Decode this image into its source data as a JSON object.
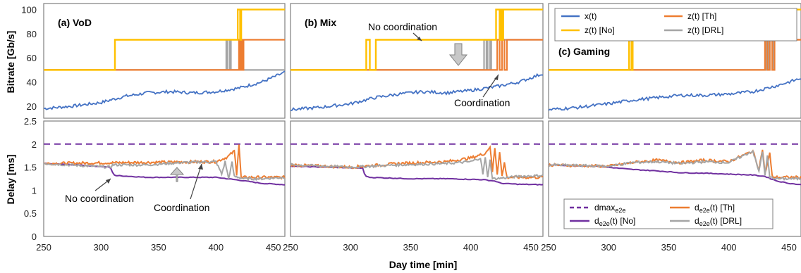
{
  "colors": {
    "x": "#4472C4",
    "th": "#ED7D31",
    "no": "#FFC000",
    "drl": "#A5A5A5",
    "dmax": "#7030A0",
    "d_no": "#7030A0",
    "d_th": "#ED7D31",
    "d_drl": "#A5A5A5"
  },
  "chart_data": {
    "type": "line",
    "xlabel": "Day time [min]",
    "x_ticks": [
      "250",
      "300",
      "350",
      "400",
      "450"
    ],
    "xlim": [
      250,
      460
    ],
    "top": {
      "ylabel": "Bitrate [Gb/s]",
      "ylim": [
        10,
        105
      ],
      "y_ticks": [
        "20",
        "40",
        "60",
        "80",
        "100"
      ],
      "legend": {
        "x": "x(t)",
        "th": "z(t) [Th]",
        "no": "z(t) [No]",
        "drl": "z(t) [DRL]"
      }
    },
    "bottom": {
      "ylabel": "Delay [ms]",
      "ylim": [
        0,
        2.5
      ],
      "y_ticks": [
        "0",
        "0.5",
        "1",
        "1.5",
        "2",
        "2.5"
      ],
      "legend": {
        "dmax_base": "dmax",
        "dmax_sub": "e2e",
        "d_th_base": "d",
        "d_th_sub": "e2e",
        "d_th_rest": "(t) [Th]",
        "d_no_base": "d",
        "d_no_sub": "e2e",
        "d_no_rest": "(t) [No]",
        "d_drl_base": "d",
        "d_drl_sub": "e2e",
        "d_drl_rest": "(t) [DRL]"
      }
    },
    "panels": [
      {
        "label": "(a) VoD",
        "x_series": {
          "x": [
            250,
            275,
            300,
            320,
            340,
            360,
            380,
            400,
            420,
            440,
            460
          ],
          "y": [
            18,
            20,
            23,
            28,
            31,
            32,
            31,
            32,
            35,
            40,
            48
          ]
        },
        "z_no": {
          "x": [
            250,
            311,
            312,
            418,
            419,
            421,
            422,
            460
          ],
          "y": [
            50,
            50,
            75,
            75,
            100,
            75,
            100,
            100
          ]
        },
        "z_drl": {
          "x": [
            250,
            408,
            409,
            410,
            412,
            413,
            460
          ],
          "y": [
            50,
            50,
            75,
            50,
            75,
            50,
            50
          ]
        },
        "z_th": {
          "x": [
            250,
            418,
            420,
            421,
            422,
            423,
            424,
            460
          ],
          "y": [
            50,
            50,
            75,
            50,
            75,
            50,
            75,
            75
          ]
        },
        "d_no": {
          "x": [
            250,
            280,
            308,
            310,
            312,
            340,
            370,
            400,
            420,
            440,
            460
          ],
          "y": [
            1.58,
            1.55,
            1.5,
            1.38,
            1.32,
            1.28,
            1.28,
            1.28,
            1.22,
            1.15,
            1.12
          ]
        },
        "d_drl": {
          "x": [
            250,
            308,
            310,
            315,
            340,
            370,
            400,
            405,
            408,
            411,
            414,
            416,
            420,
            424,
            440,
            460
          ],
          "y": [
            1.58,
            1.5,
            1.55,
            1.55,
            1.55,
            1.6,
            1.62,
            1.35,
            1.62,
            1.25,
            1.6,
            1.3,
            1.28,
            1.25,
            1.25,
            1.28
          ]
        },
        "d_th": {
          "x": [
            250,
            400,
            410,
            416,
            418,
            420,
            422,
            424,
            460
          ],
          "y": [
            1.58,
            1.62,
            1.72,
            1.85,
            1.35,
            2.0,
            1.25,
            1.28,
            1.28
          ]
        },
        "annotations": [
          {
            "id": "no_coord",
            "text": "No coordination"
          },
          {
            "id": "coord",
            "text": "Coordination"
          }
        ]
      },
      {
        "label": "(b) Mix",
        "x_series": {
          "x": [
            250,
            275,
            300,
            320,
            340,
            360,
            380,
            400,
            420,
            440,
            460
          ],
          "y": [
            17,
            19,
            22,
            27,
            30,
            32,
            31,
            33,
            36,
            40,
            47
          ]
        },
        "z_no": {
          "x": [
            250,
            312,
            313,
            316,
            317,
            320,
            321,
            420,
            421,
            424,
            425,
            426,
            427,
            460
          ],
          "y": [
            50,
            50,
            75,
            50,
            50,
            50,
            75,
            75,
            100,
            75,
            100,
            75,
            100,
            100
          ]
        },
        "z_drl": {
          "x": [
            250,
            410,
            411,
            413,
            414,
            416,
            417,
            460
          ],
          "y": [
            50,
            50,
            75,
            50,
            75,
            50,
            75,
            75
          ]
        },
        "z_th": {
          "x": [
            250,
            420,
            422,
            424,
            426,
            428,
            430,
            432,
            460
          ],
          "y": [
            50,
            50,
            75,
            50,
            75,
            50,
            75,
            75,
            75
          ]
        },
        "d_no": {
          "x": [
            250,
            280,
            310,
            312,
            315,
            350,
            380,
            410,
            420,
            425,
            440,
            460
          ],
          "y": [
            1.52,
            1.5,
            1.48,
            1.32,
            1.28,
            1.25,
            1.25,
            1.23,
            1.2,
            1.15,
            1.13,
            1.12
          ]
        },
        "d_drl": {
          "x": [
            250,
            300,
            340,
            380,
            400,
            408,
            410,
            412,
            414,
            416,
            418,
            420,
            440,
            460
          ],
          "y": [
            1.55,
            1.5,
            1.55,
            1.58,
            1.62,
            1.7,
            1.35,
            1.7,
            1.3,
            1.65,
            1.25,
            1.25,
            1.3,
            1.32
          ]
        },
        "d_th": {
          "x": [
            250,
            300,
            340,
            380,
            400,
            412,
            416,
            418,
            420,
            422,
            424,
            426,
            428,
            430,
            460
          ],
          "y": [
            1.55,
            1.5,
            1.58,
            1.62,
            1.7,
            1.8,
            1.95,
            1.4,
            1.92,
            1.35,
            1.85,
            1.3,
            1.6,
            1.28,
            1.28
          ]
        },
        "annotations": [
          {
            "id": "no_coord",
            "text": "No coordination"
          },
          {
            "id": "coord",
            "text": "Coordination"
          }
        ]
      },
      {
        "label": "(c) Gaming",
        "x_series": {
          "x": [
            250,
            275,
            300,
            320,
            340,
            360,
            380,
            400,
            420,
            440,
            460
          ],
          "y": [
            17,
            19,
            22,
            25,
            27,
            29,
            29,
            30,
            32,
            37,
            43
          ]
        },
        "z_no": {
          "x": [
            250,
            316,
            317,
            319,
            320,
            425,
            426,
            428,
            429,
            433,
            434,
            436,
            437,
            460
          ],
          "y": [
            50,
            50,
            75,
            50,
            75,
            75,
            100,
            75,
            100,
            75,
            100,
            75,
            100,
            100
          ]
        },
        "z_drl": {
          "x": [
            250,
            430,
            431,
            433,
            434,
            436,
            437,
            460
          ],
          "y": [
            50,
            50,
            75,
            50,
            75,
            50,
            75,
            75
          ]
        },
        "z_th": {
          "x": [
            250,
            428,
            430,
            432,
            434,
            436,
            438,
            460
          ],
          "y": [
            50,
            50,
            75,
            50,
            75,
            50,
            75,
            75
          ]
        },
        "d_no": {
          "x": [
            250,
            290,
            320,
            340,
            360,
            380,
            400,
            420,
            430,
            440,
            450,
            460
          ],
          "y": [
            1.55,
            1.52,
            1.45,
            1.42,
            1.38,
            1.37,
            1.35,
            1.33,
            1.3,
            1.2,
            1.15,
            1.12
          ]
        },
        "d_drl": {
          "x": [
            250,
            300,
            320,
            340,
            360,
            380,
            400,
            420,
            425,
            428,
            430,
            432,
            434,
            440,
            460
          ],
          "y": [
            1.55,
            1.52,
            1.6,
            1.62,
            1.58,
            1.62,
            1.6,
            1.85,
            1.4,
            1.85,
            1.3,
            1.75,
            1.28,
            1.25,
            1.25
          ]
        },
        "d_th": {
          "x": [
            250,
            300,
            320,
            340,
            360,
            380,
            400,
            420,
            425,
            428,
            430,
            434,
            436,
            440,
            460
          ],
          "y": [
            1.55,
            1.52,
            1.6,
            1.65,
            1.6,
            1.65,
            1.62,
            1.85,
            1.45,
            1.9,
            1.35,
            1.8,
            1.3,
            1.28,
            1.28
          ]
        },
        "annotations": []
      }
    ]
  }
}
